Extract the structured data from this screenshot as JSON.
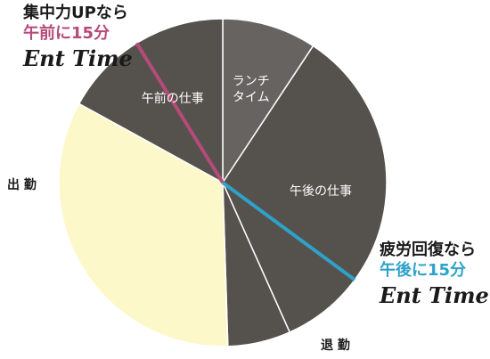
{
  "chart_data": {
    "type": "pie",
    "start_angle_deg": 0,
    "slices": [
      {
        "label": "ランチ\nタイム",
        "value": 9.3,
        "color": "#676361"
      },
      {
        "label": "午後の仕事",
        "value": 34.0,
        "color": "#55524d"
      },
      {
        "label": "",
        "value": 6.2,
        "color": "#55524d"
      },
      {
        "label": "",
        "value": 33.5,
        "color": "#fdf8c9"
      },
      {
        "label": "午前の仕事",
        "value": 17.0,
        "color": "#55524d"
      }
    ],
    "slice_border_color": "#ffffff",
    "highlight_lines": [
      {
        "at_percent": 35.1,
        "color": "#2fa2c9"
      },
      {
        "at_percent": 91.2,
        "color": "#b64a7a"
      }
    ]
  },
  "labels": {
    "start": "出 勤",
    "end": "退 勤"
  },
  "callout_morning": {
    "line1": "集中力UPなら",
    "line2": "午前に15分",
    "line3": "Ent Time",
    "color": "#b64a7a"
  },
  "callout_afternoon": {
    "line1": "疲労回復なら",
    "line2": "午後に15分",
    "line3": "Ent Time",
    "color": "#2fa2c9"
  }
}
